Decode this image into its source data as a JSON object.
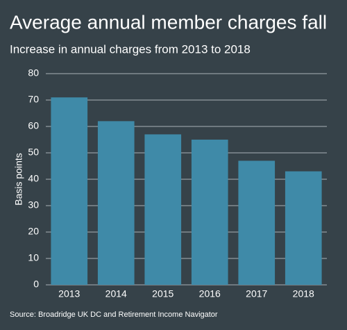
{
  "chart_data": {
    "type": "bar",
    "title": "Average annual member charges fall",
    "subtitle": "Increase in annual charges from 2013 to 2018",
    "y_label": "Basis points",
    "source": "Source: Broadridge UK DC and Retirement Income Navigator",
    "categories": [
      "2013",
      "2014",
      "2015",
      "2016",
      "2017",
      "2018"
    ],
    "values": [
      71,
      62,
      57,
      55,
      47,
      43
    ],
    "color": "#3f8aa8",
    "ylim": [
      0,
      80
    ],
    "yticks": [
      0,
      10,
      20,
      30,
      40,
      50,
      60,
      70,
      80
    ],
    "grid": true
  }
}
